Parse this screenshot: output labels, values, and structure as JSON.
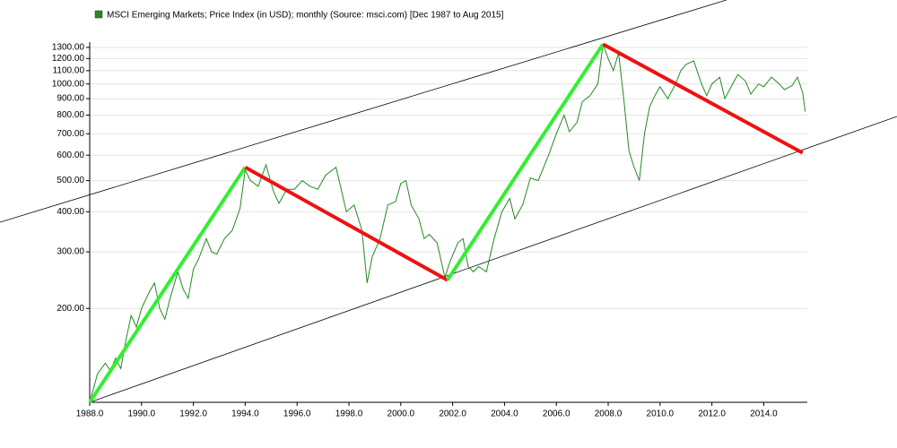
{
  "chart_data": {
    "type": "line",
    "log_scale": true,
    "grid": true,
    "xlim": [
      1988,
      2015.68
    ],
    "ylim": [
      102,
      1350
    ],
    "xticks": [
      {
        "value": 1988,
        "label": "1988.0"
      },
      {
        "value": 1990,
        "label": "1990.0"
      },
      {
        "value": 1992,
        "label": "1992.0"
      },
      {
        "value": 1994,
        "label": "1994.0"
      },
      {
        "value": 1996,
        "label": "1996.0"
      },
      {
        "value": 1998,
        "label": "1998.0"
      },
      {
        "value": 2000,
        "label": "2000.0"
      },
      {
        "value": 2002,
        "label": "2002.0"
      },
      {
        "value": 2004,
        "label": "2004.0"
      },
      {
        "value": 2006,
        "label": "2006.0"
      },
      {
        "value": 2008,
        "label": "2008.0"
      },
      {
        "value": 2010,
        "label": "2010.0"
      },
      {
        "value": 2012,
        "label": "2012.0"
      },
      {
        "value": 2014,
        "label": "2014.0"
      }
    ],
    "yticks": [
      {
        "value": 200,
        "label": "200.00"
      },
      {
        "value": 300,
        "label": "300.00"
      },
      {
        "value": 400,
        "label": "400.00"
      },
      {
        "value": 500,
        "label": "500.00"
      },
      {
        "value": 600,
        "label": "600.00"
      },
      {
        "value": 700,
        "label": "700.00"
      },
      {
        "value": 800,
        "label": "800.00"
      },
      {
        "value": 900,
        "label": "900.00"
      },
      {
        "value": 1000,
        "label": "1000.00"
      },
      {
        "value": 1100,
        "label": "1100.00"
      },
      {
        "value": 1200,
        "label": "1200.00"
      },
      {
        "value": 1300,
        "label": "1300.00"
      }
    ],
    "series": [
      {
        "name": "MSCI Emerging Markets; Price Index (in USD); monthly (Source: msci.com) [Dec 1987 to Aug 2015]",
        "color": "#228b22",
        "x": [
          1988.0,
          1988.3,
          1988.6,
          1988.8,
          1989.0,
          1989.2,
          1989.4,
          1989.6,
          1989.8,
          1990.0,
          1990.3,
          1990.5,
          1990.7,
          1990.9,
          1991.1,
          1991.4,
          1991.6,
          1991.8,
          1992.0,
          1992.2,
          1992.5,
          1992.7,
          1992.9,
          1993.2,
          1993.5,
          1993.8,
          1994.0,
          1994.2,
          1994.5,
          1994.8,
          1995.1,
          1995.3,
          1995.6,
          1995.9,
          1996.2,
          1996.5,
          1996.8,
          1997.1,
          1997.5,
          1997.7,
          1997.9,
          1998.2,
          1998.5,
          1998.7,
          1998.9,
          1999.2,
          1999.5,
          1999.8,
          2000.0,
          2000.2,
          2000.4,
          2000.7,
          2000.9,
          2001.1,
          2001.4,
          2001.7,
          2001.9,
          2002.2,
          2002.4,
          2002.6,
          2002.8,
          2003.0,
          2003.3,
          2003.6,
          2003.9,
          2004.2,
          2004.4,
          2004.7,
          2005.0,
          2005.3,
          2005.7,
          2006.0,
          2006.3,
          2006.5,
          2006.8,
          2007.0,
          2007.3,
          2007.6,
          2007.8,
          2008.0,
          2008.2,
          2008.4,
          2008.6,
          2008.8,
          2009.0,
          2009.2,
          2009.4,
          2009.6,
          2009.8,
          2010.0,
          2010.3,
          2010.6,
          2010.8,
          2011.0,
          2011.3,
          2011.6,
          2011.8,
          2012.0,
          2012.3,
          2012.5,
          2012.8,
          2013.0,
          2013.3,
          2013.5,
          2013.8,
          2014.0,
          2014.3,
          2014.6,
          2014.8,
          2015.1,
          2015.3,
          2015.5,
          2015.6
        ],
        "values": [
          102,
          125,
          135,
          128,
          140,
          130,
          160,
          190,
          175,
          200,
          225,
          240,
          200,
          185,
          215,
          260,
          230,
          215,
          265,
          285,
          330,
          300,
          295,
          330,
          350,
          410,
          540,
          500,
          480,
          560,
          460,
          425,
          470,
          470,
          500,
          480,
          470,
          520,
          550,
          470,
          400,
          420,
          350,
          240,
          290,
          330,
          420,
          430,
          490,
          500,
          420,
          380,
          330,
          340,
          320,
          250,
          280,
          320,
          330,
          270,
          260,
          270,
          260,
          330,
          400,
          440,
          380,
          420,
          510,
          500,
          600,
          700,
          800,
          710,
          760,
          880,
          920,
          1000,
          1330,
          1200,
          1100,
          1250,
          900,
          620,
          550,
          500,
          700,
          850,
          920,
          980,
          900,
          1000,
          1100,
          1150,
          1180,
          1000,
          920,
          1000,
          1050,
          900,
          1000,
          1070,
          1020,
          930,
          1000,
          980,
          1050,
          1000,
          960,
          990,
          1050,
          940,
          820
        ]
      }
    ],
    "channel_lines": [
      {
        "color": "#000000",
        "x": [
          1984.54,
          2012.57
        ],
        "values": [
          371,
          1827
        ]
      },
      {
        "color": "#000000",
        "x": [
          1988.0,
          2019.14
        ],
        "values": [
          102,
          792
        ]
      }
    ],
    "trend_lines": [
      {
        "color": "#33ee33",
        "x": [
          1988.0,
          1994.0
        ],
        "values": [
          102,
          550
        ]
      },
      {
        "color": "#ee1111",
        "x": [
          1994.0,
          2001.8
        ],
        "values": [
          550,
          245
        ]
      },
      {
        "color": "#33ee33",
        "x": [
          2001.8,
          2007.8
        ],
        "values": [
          245,
          1330
        ]
      },
      {
        "color": "#ee1111",
        "x": [
          2007.8,
          2015.5
        ],
        "values": [
          1330,
          610
        ]
      }
    ]
  }
}
